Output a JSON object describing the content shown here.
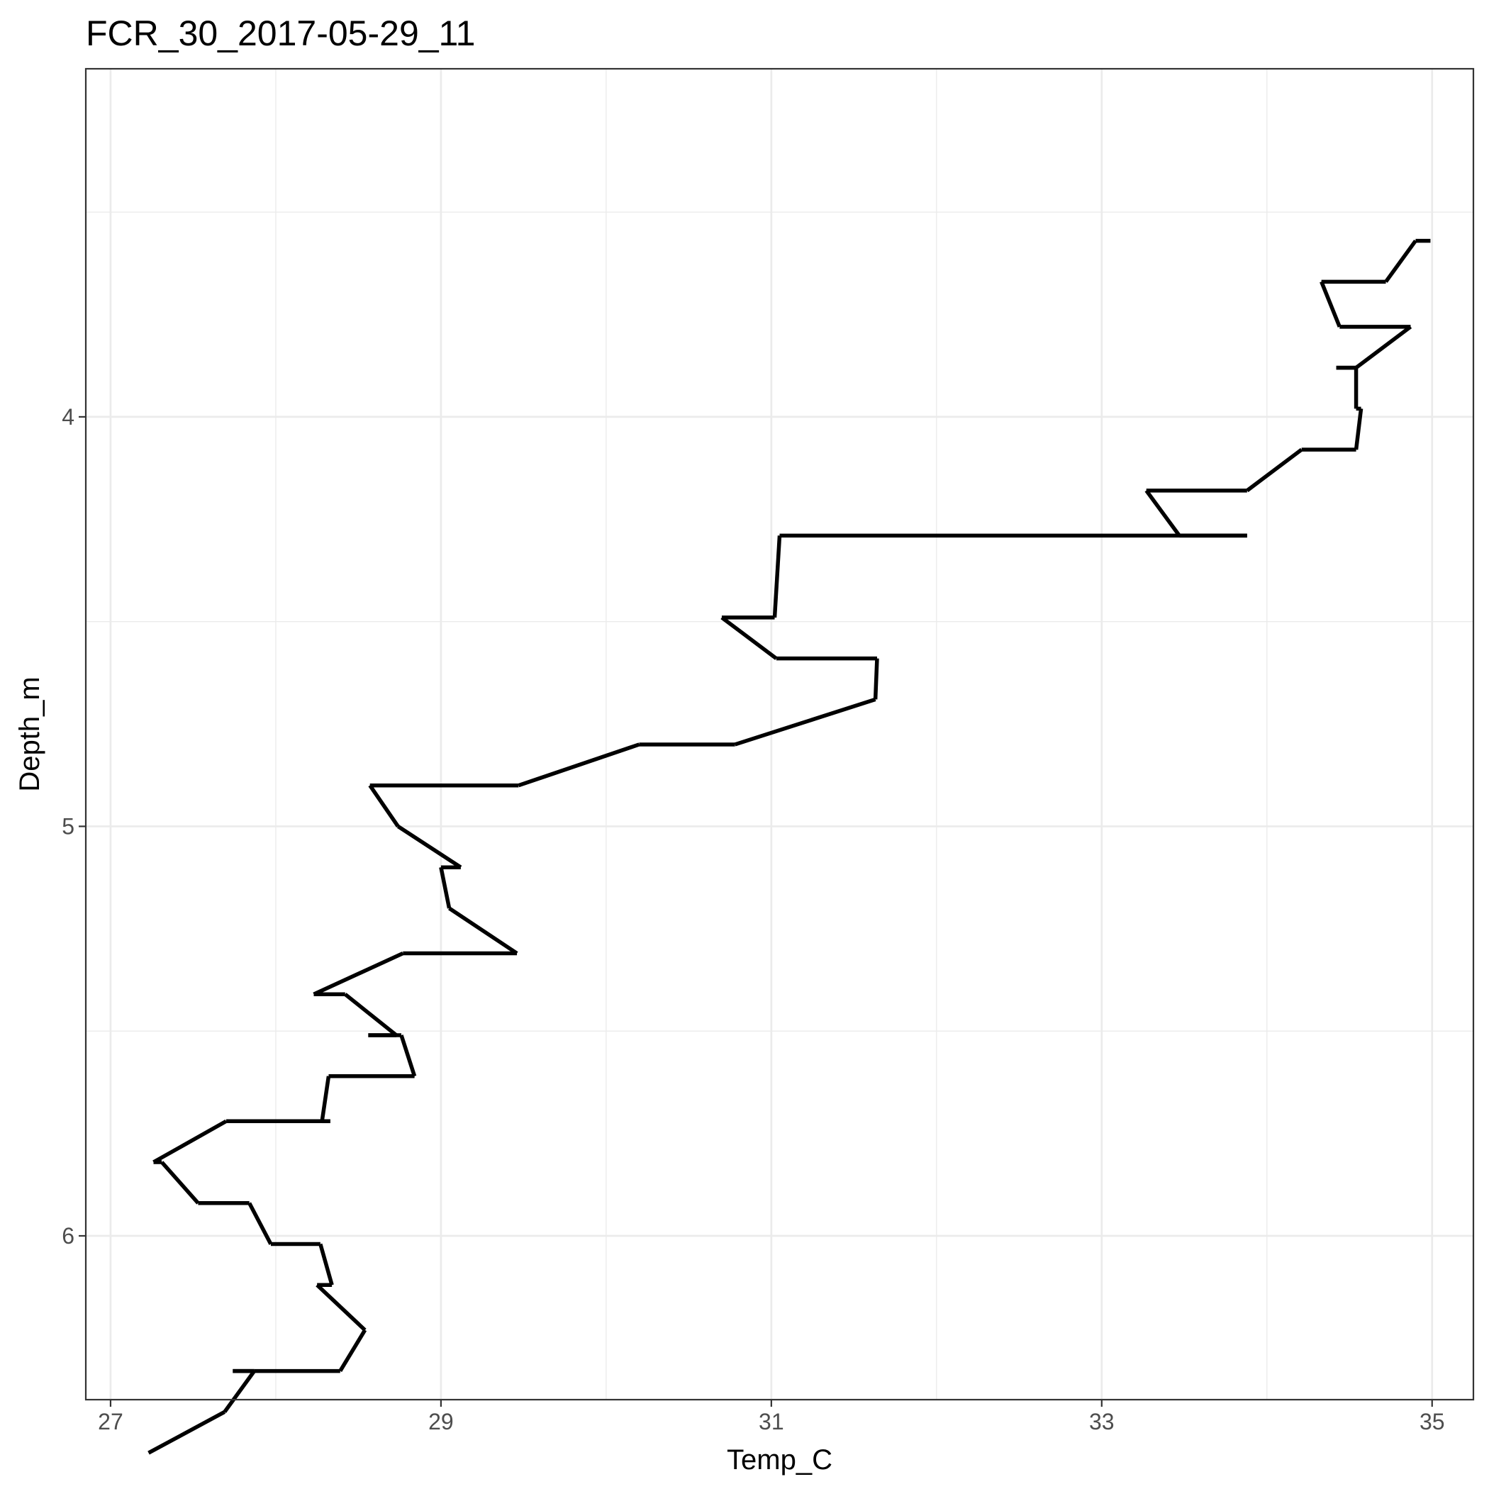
{
  "chart_data": {
    "type": "line",
    "title": "FCR_30_2017-05-29_11",
    "xlabel": "Temp_C",
    "ylabel": "Depth_m",
    "xlim": [
      26.85,
      35.25
    ],
    "ylim": [
      3.15,
      6.4
    ],
    "y_reversed": true,
    "grid": true,
    "x_ticks": [
      27,
      29,
      31,
      33,
      35
    ],
    "y_ticks": [
      4,
      5,
      6
    ],
    "x_minor": [
      28,
      30,
      32,
      34
    ],
    "y_minor": [
      3.5,
      4.5,
      5.5,
      6.5
    ],
    "series": [
      {
        "color": "#000000",
        "points": [
          [
            34.99,
            3.57
          ],
          [
            34.9,
            3.57
          ],
          [
            34.72,
            3.67
          ],
          [
            34.33,
            3.67
          ],
          [
            34.44,
            3.78
          ],
          [
            34.87,
            3.78
          ],
          [
            34.54,
            3.88
          ],
          [
            34.42,
            3.88
          ],
          [
            34.54,
            3.88
          ],
          [
            34.54,
            3.98
          ],
          [
            34.57,
            3.98
          ],
          [
            34.54,
            4.08
          ],
          [
            34.21,
            4.08
          ],
          [
            33.88,
            4.18
          ],
          [
            33.27,
            4.18
          ],
          [
            33.47,
            4.29
          ],
          [
            33.88,
            4.29
          ],
          [
            31.05,
            4.29
          ],
          [
            31.02,
            4.49
          ],
          [
            30.7,
            4.49
          ],
          [
            31.03,
            4.59
          ],
          [
            31.64,
            4.59
          ],
          [
            31.63,
            4.69
          ],
          [
            30.78,
            4.8
          ],
          [
            30.2,
            4.8
          ],
          [
            29.47,
            4.9
          ],
          [
            28.57,
            4.9
          ],
          [
            28.74,
            5.0
          ],
          [
            29.12,
            5.1
          ],
          [
            29.0,
            5.1
          ],
          [
            29.05,
            5.2
          ],
          [
            29.46,
            5.31
          ],
          [
            28.77,
            5.31
          ],
          [
            28.23,
            5.41
          ],
          [
            28.42,
            5.41
          ],
          [
            28.73,
            5.51
          ],
          [
            28.56,
            5.51
          ],
          [
            28.76,
            5.51
          ],
          [
            28.84,
            5.61
          ],
          [
            28.32,
            5.61
          ],
          [
            28.28,
            5.72
          ],
          [
            28.33,
            5.72
          ],
          [
            27.7,
            5.72
          ],
          [
            27.26,
            5.82
          ],
          [
            27.31,
            5.82
          ],
          [
            27.53,
            5.92
          ],
          [
            27.84,
            5.92
          ],
          [
            27.97,
            6.02
          ],
          [
            28.27,
            6.02
          ],
          [
            28.34,
            6.12
          ],
          [
            28.25,
            6.12
          ],
          [
            28.54,
            6.23
          ],
          [
            28.39,
            6.33
          ],
          [
            27.87,
            6.33
          ],
          [
            27.74,
            6.33
          ],
          [
            27.87,
            6.33
          ],
          [
            27.69,
            6.43
          ],
          [
            27.23,
            6.53
          ]
        ]
      }
    ]
  }
}
